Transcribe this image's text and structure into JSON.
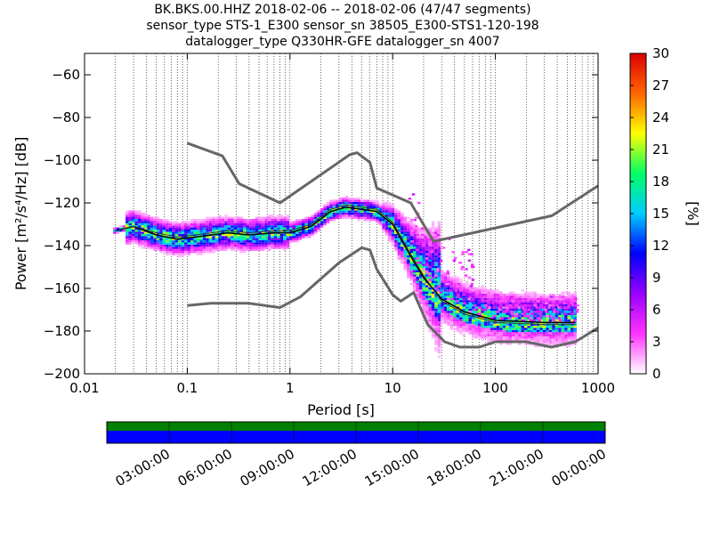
{
  "title": {
    "line1": "BK.BKS.00.HHZ   2018-02-06 -- 2018-02-06  (47/47 segments)",
    "line2": "sensor_type STS-1_E300 sensor_sn 38505_E300-STS1-120-198",
    "line3": "datalogger_type Q330HR-GFE datalogger_sn 4007"
  },
  "chart_data": {
    "type": "heatmap",
    "xlabel": "Period [s]",
    "ylabel": "Power [m²/s⁴/Hz] [dB]",
    "xscale": "log",
    "xlim": [
      0.01,
      1000
    ],
    "ylim": [
      -200,
      -50
    ],
    "x_ticks": [
      {
        "value": 0.01,
        "label": "0.01"
      },
      {
        "value": 0.1,
        "label": "0.1"
      },
      {
        "value": 1,
        "label": "1"
      },
      {
        "value": 10,
        "label": "10"
      },
      {
        "value": 100,
        "label": "100"
      },
      {
        "value": 1000,
        "label": "1000"
      }
    ],
    "y_ticks": [
      -60,
      -80,
      -100,
      -120,
      -140,
      -160,
      -180,
      -200
    ],
    "y_tick_labels": [
      "−60",
      "−80",
      "−100",
      "−120",
      "−140",
      "−160",
      "−180",
      "−200"
    ],
    "grid": "dotted vertical",
    "colorbar": {
      "label": "[%]",
      "range": [
        0,
        30
      ],
      "ticks": [
        "30",
        "27",
        "24",
        "21",
        "18",
        "15",
        "12",
        "9",
        "6",
        "3",
        "0"
      ],
      "colormap": [
        "#ffffff",
        "#ff33ff",
        "#9900ff",
        "#0000ff",
        "#00ccff",
        "#00ff66",
        "#ffff00",
        "#ff6600",
        "#dd0000"
      ]
    },
    "noise_model_high": [
      [
        0.1,
        -92
      ],
      [
        0.22,
        -98
      ],
      [
        0.32,
        -111
      ],
      [
        0.8,
        -120
      ],
      [
        3.8,
        -97.5
      ],
      [
        4.5,
        -96.5
      ],
      [
        6,
        -101
      ],
      [
        7,
        -113
      ],
      [
        15,
        -120
      ],
      [
        25,
        -138
      ],
      [
        355,
        -126
      ],
      [
        1000,
        -112
      ]
    ],
    "noise_model_low": [
      [
        0.1,
        -168
      ],
      [
        0.17,
        -167
      ],
      [
        0.4,
        -167
      ],
      [
        0.8,
        -169
      ],
      [
        1.26,
        -164
      ],
      [
        3,
        -148
      ],
      [
        5,
        -141
      ],
      [
        6,
        -142
      ],
      [
        7,
        -151
      ],
      [
        10,
        -163
      ],
      [
        12,
        -166
      ],
      [
        16,
        -162
      ],
      [
        22,
        -177
      ],
      [
        32,
        -185
      ],
      [
        45,
        -187.5
      ],
      [
        70,
        -187.5
      ],
      [
        100,
        -185
      ],
      [
        200,
        -185
      ],
      [
        350,
        -187.5
      ],
      [
        600,
        -185
      ],
      [
        1000,
        -178.5
      ]
    ],
    "mean_curve": [
      [
        0.02,
        -133
      ],
      [
        0.03,
        -131
      ],
      [
        0.05,
        -135
      ],
      [
        0.08,
        -137
      ],
      [
        0.12,
        -136
      ],
      [
        0.25,
        -134
      ],
      [
        0.4,
        -135
      ],
      [
        0.7,
        -134
      ],
      [
        1,
        -134
      ],
      [
        1.6,
        -131
      ],
      [
        2.5,
        -124
      ],
      [
        3.5,
        -122
      ],
      [
        5,
        -123
      ],
      [
        7,
        -124
      ],
      [
        10,
        -130
      ],
      [
        15,
        -145
      ],
      [
        20,
        -155
      ],
      [
        30,
        -165
      ],
      [
        50,
        -171
      ],
      [
        100,
        -175
      ],
      [
        300,
        -176
      ],
      [
        600,
        -176
      ]
    ],
    "median_curve": [
      [
        0.02,
        -133
      ],
      [
        0.03,
        -131
      ],
      [
        0.05,
        -134
      ],
      [
        0.08,
        -136
      ],
      [
        0.12,
        -135
      ],
      [
        0.25,
        -133
      ],
      [
        0.4,
        -134
      ],
      [
        0.7,
        -133
      ],
      [
        1,
        -133
      ],
      [
        1.6,
        -130
      ],
      [
        2.5,
        -123
      ],
      [
        3.5,
        -121
      ],
      [
        5,
        -122
      ],
      [
        7,
        -123
      ],
      [
        10,
        -129
      ],
      [
        15,
        -144
      ],
      [
        20,
        -154
      ],
      [
        30,
        -166
      ],
      [
        50,
        -172
      ],
      [
        100,
        -176
      ],
      [
        300,
        -177
      ],
      [
        600,
        -177
      ]
    ]
  },
  "timeline": {
    "labels": [
      "03:00:00",
      "06:00:00",
      "09:00:00",
      "12:00:00",
      "15:00:00",
      "18:00:00",
      "21:00:00",
      "00:00:00"
    ],
    "colors": {
      "data_coverage": "#008000",
      "gap_free": "#0000ff"
    }
  }
}
